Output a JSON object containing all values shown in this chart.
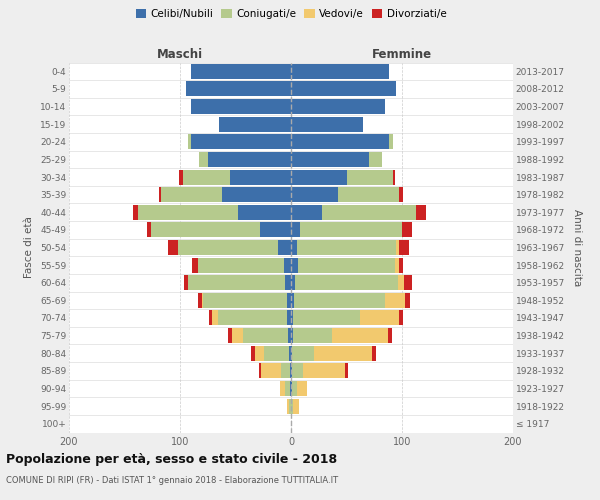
{
  "age_groups": [
    "100+",
    "95-99",
    "90-94",
    "85-89",
    "80-84",
    "75-79",
    "70-74",
    "65-69",
    "60-64",
    "55-59",
    "50-54",
    "45-49",
    "40-44",
    "35-39",
    "30-34",
    "25-29",
    "20-24",
    "15-19",
    "10-14",
    "5-9",
    "0-4"
  ],
  "birth_years": [
    "≤ 1917",
    "1918-1922",
    "1923-1927",
    "1928-1932",
    "1933-1937",
    "1938-1942",
    "1943-1947",
    "1948-1952",
    "1953-1957",
    "1958-1962",
    "1963-1967",
    "1968-1972",
    "1973-1977",
    "1978-1982",
    "1983-1987",
    "1988-1992",
    "1993-1997",
    "1998-2002",
    "2003-2007",
    "2008-2012",
    "2013-2017"
  ],
  "colors": {
    "celibi": "#3d6faa",
    "coniugati": "#b5ca8d",
    "vedovi": "#f2c96e",
    "divorziati": "#cc2222"
  },
  "male_celibi": [
    0,
    0,
    1,
    1,
    2,
    3,
    4,
    4,
    5,
    6,
    12,
    28,
    48,
    62,
    55,
    75,
    90,
    65,
    90,
    95,
    90
  ],
  "male_coniugati": [
    0,
    2,
    4,
    8,
    22,
    40,
    62,
    75,
    88,
    78,
    90,
    98,
    90,
    55,
    42,
    8,
    3,
    0,
    0,
    0,
    0
  ],
  "male_vedovi": [
    0,
    2,
    5,
    18,
    8,
    10,
    5,
    1,
    0,
    0,
    0,
    0,
    0,
    0,
    0,
    0,
    0,
    0,
    0,
    0,
    0
  ],
  "male_divorziati": [
    0,
    0,
    0,
    2,
    4,
    4,
    3,
    4,
    3,
    5,
    9,
    4,
    4,
    2,
    4,
    0,
    0,
    0,
    0,
    0,
    0
  ],
  "female_celibi": [
    0,
    0,
    1,
    1,
    1,
    2,
    2,
    3,
    4,
    6,
    5,
    8,
    28,
    42,
    50,
    70,
    88,
    65,
    85,
    95,
    88
  ],
  "female_coniugati": [
    0,
    2,
    4,
    10,
    20,
    35,
    60,
    82,
    92,
    88,
    90,
    92,
    85,
    55,
    42,
    12,
    4,
    0,
    0,
    0,
    0
  ],
  "female_vedovi": [
    0,
    5,
    9,
    38,
    52,
    50,
    35,
    18,
    6,
    3,
    2,
    0,
    0,
    0,
    0,
    0,
    0,
    0,
    0,
    0,
    0
  ],
  "female_divorziati": [
    0,
    0,
    0,
    2,
    4,
    4,
    4,
    4,
    7,
    4,
    9,
    9,
    9,
    4,
    2,
    0,
    0,
    0,
    0,
    0,
    0
  ],
  "xlim": 200,
  "xticks": [
    -200,
    -100,
    0,
    100,
    200
  ],
  "xtick_labels": [
    "200",
    "100",
    "0",
    "100",
    "200"
  ],
  "title": "Popolazione per età, sesso e stato civile - 2018",
  "subtitle": "COMUNE DI RIPI (FR) - Dati ISTAT 1° gennaio 2018 - Elaborazione TUTTITALIA.IT",
  "label_maschi": "Maschi",
  "label_femmine": "Femmine",
  "ylabel_left": "Fasce di età",
  "ylabel_right": "Anni di nascita",
  "bg_color": "#eeeeee",
  "plot_bg_color": "#ffffff",
  "legend_labels": [
    "Celibi/Nubili",
    "Coniugati/e",
    "Vedovi/e",
    "Divorziati/e"
  ]
}
